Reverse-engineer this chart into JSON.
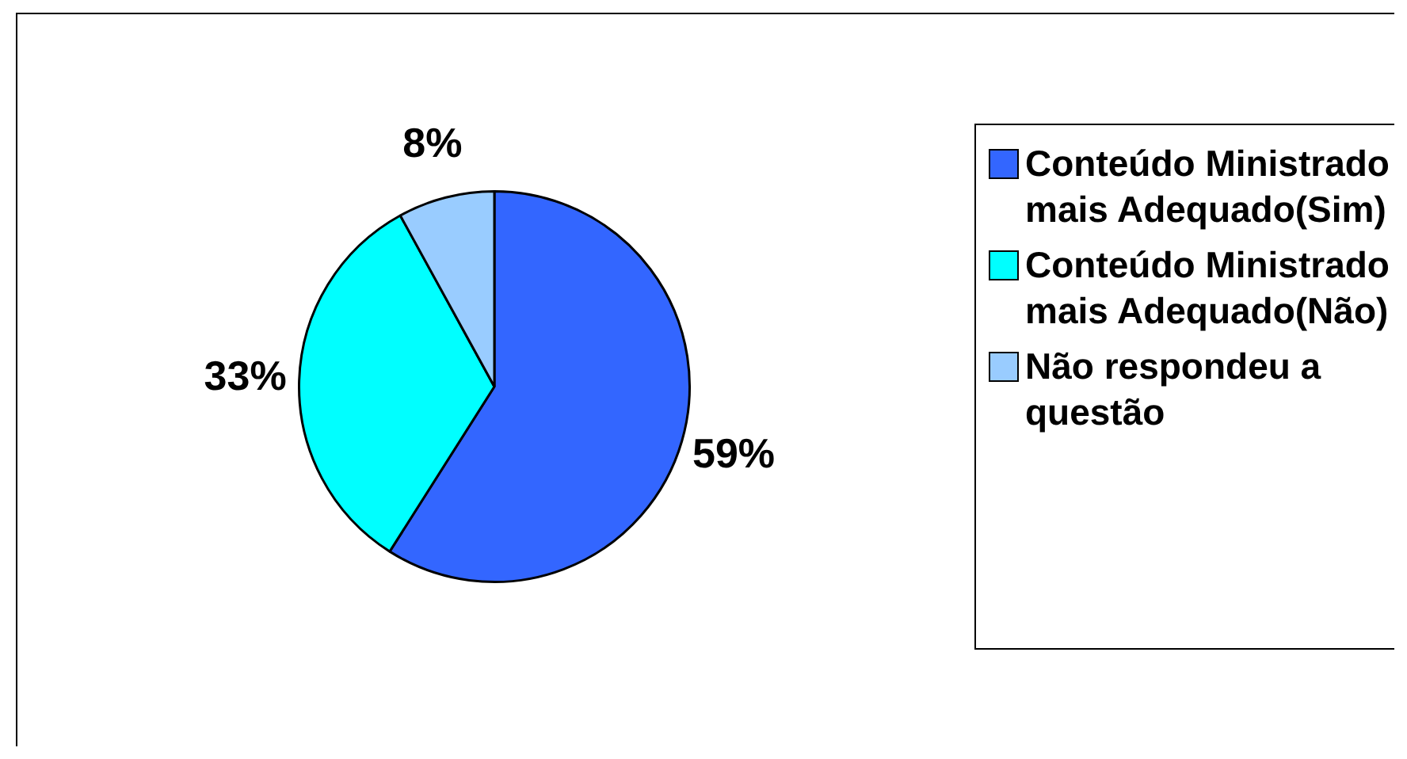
{
  "chart_data": {
    "type": "pie",
    "categories": [
      "Conteúdo Ministrado mais Adequado(Sim)",
      "Conteúdo Ministrado mais Adequado(Não)",
      "Não respondeu a questão"
    ],
    "values": [
      59,
      33,
      8
    ],
    "colors": [
      "#3366ff",
      "#00ffff",
      "#99ccff"
    ],
    "value_labels": [
      "59%",
      "33%",
      "8%"
    ],
    "legend": "right"
  }
}
